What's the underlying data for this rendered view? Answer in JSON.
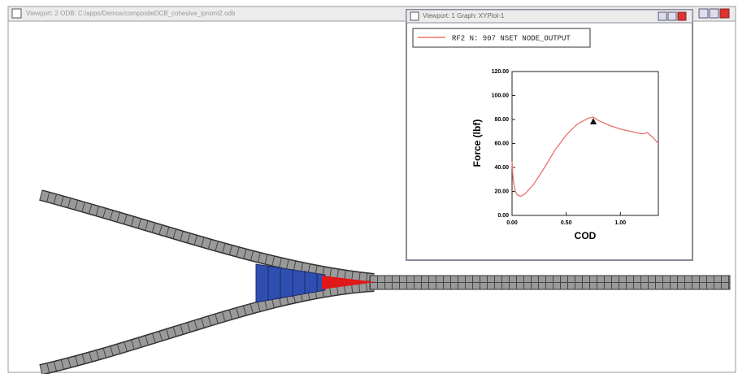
{
  "viewport_2": {
    "title": "Viewport: 2   ODB: C:/apps/Demos/compositeDCB_cohesive_ipromt2.odb"
  },
  "viewport_1": {
    "title": "Viewport: 1   Graph: XYPlot-1"
  },
  "chart_data": {
    "type": "line",
    "x_label": "COD",
    "y_label": "Force (lbf)",
    "x": [
      0,
      0.01,
      0.03,
      0.05,
      0.08,
      0.12,
      0.2,
      0.3,
      0.4,
      0.5,
      0.6,
      0.7,
      0.75,
      0.8,
      0.9,
      1.0,
      1.1,
      1.2,
      1.25,
      1.3,
      1.35
    ],
    "series": [
      {
        "name": "RF2 N: 907 NSET NODE_OUTPUT",
        "color": "#e8736b",
        "values": [
          45,
          30,
          20,
          17,
          16,
          18,
          26,
          40,
          55,
          67,
          76,
          81,
          82,
          79,
          75,
          72,
          70,
          68,
          69,
          65,
          60
        ]
      }
    ],
    "marker": {
      "x": 0.75,
      "y": 78
    },
    "xlim": [
      0,
      1.35
    ],
    "ylim": [
      0,
      120
    ],
    "xticks": [
      {
        "value": 0,
        "label": "0.00"
      },
      {
        "value": 0.5,
        "label": "0.50"
      },
      {
        "value": 1,
        "label": "1.00"
      }
    ],
    "yticks": [
      {
        "value": 0,
        "label": "0.00"
      },
      {
        "value": 20,
        "label": "20.00"
      },
      {
        "value": 40,
        "label": "40.00"
      },
      {
        "value": 60,
        "label": "60.00"
      },
      {
        "value": 80,
        "label": "80.00"
      },
      {
        "value": 100,
        "label": "100.00"
      },
      {
        "value": 120,
        "label": "120.00"
      }
    ]
  }
}
